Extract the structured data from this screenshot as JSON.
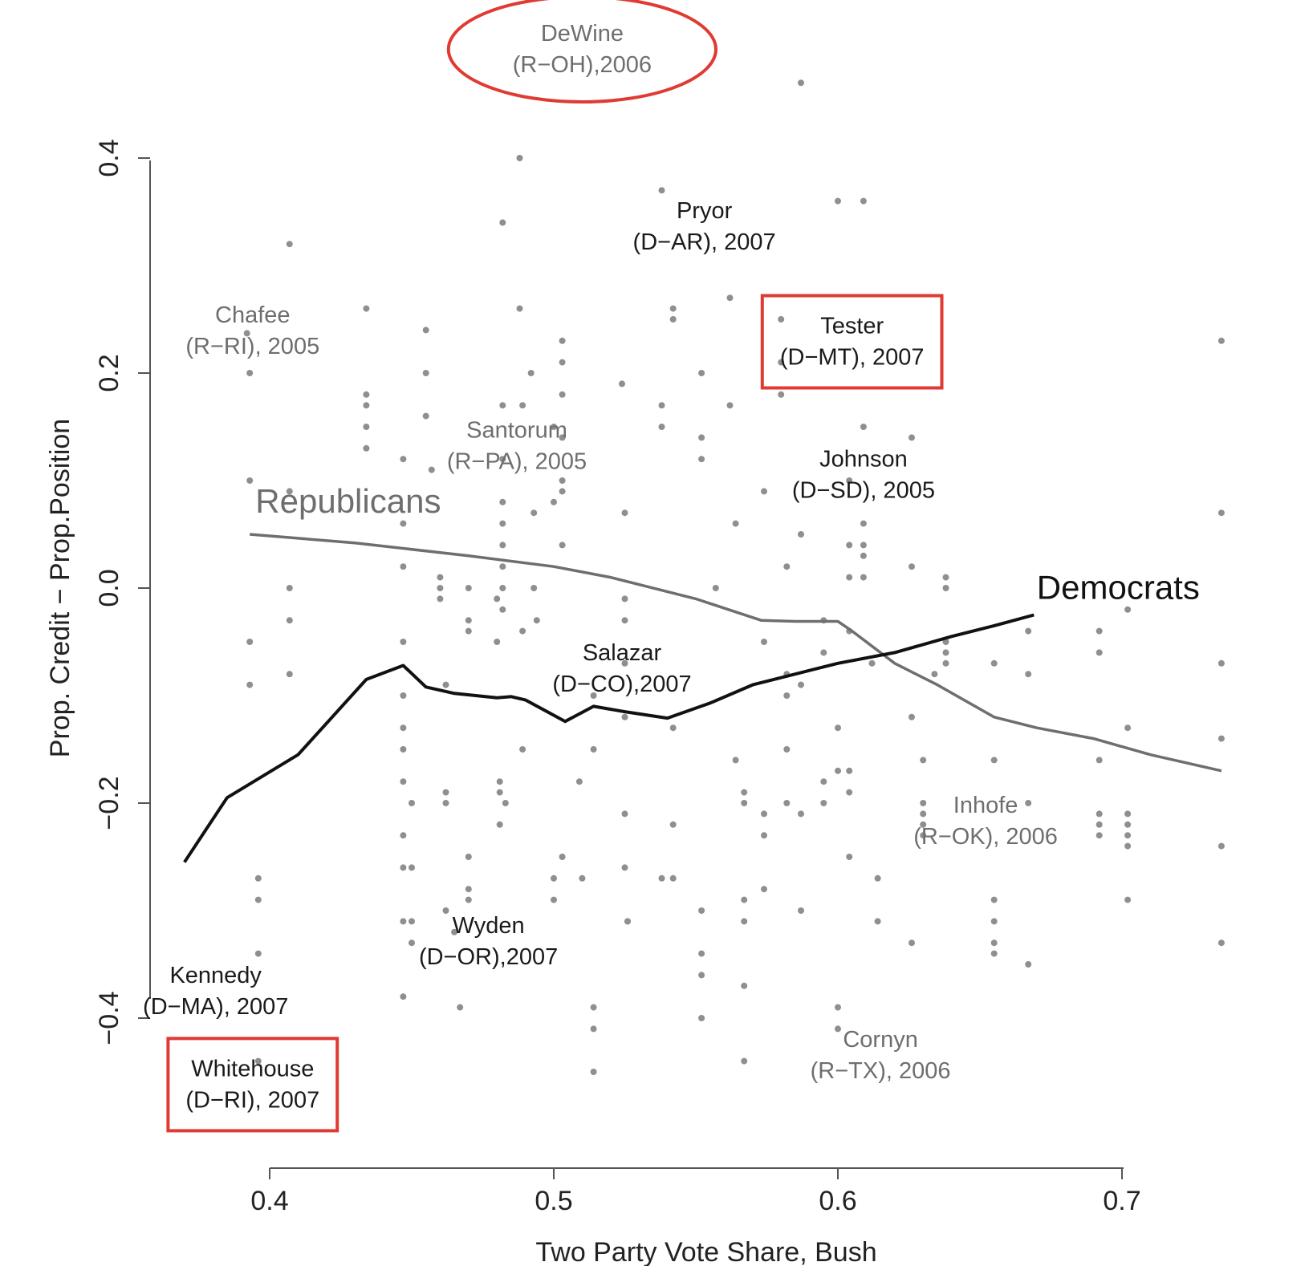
{
  "chart_data": {
    "type": "scatter",
    "xlabel": "Two Party Vote Share, Bush",
    "ylabel": "Prop. Credit − Prop.Position",
    "xlim": [
      0.355,
      0.745
    ],
    "ylim": [
      -0.51,
      0.53
    ],
    "x_ticks": [
      {
        "value": 0.4,
        "label": "0.4"
      },
      {
        "value": 0.5,
        "label": "0.5"
      },
      {
        "value": 0.6,
        "label": "0.6"
      },
      {
        "value": 0.7,
        "label": "0.7"
      }
    ],
    "y_ticks": [
      {
        "value": -0.4,
        "label": "−0.4"
      },
      {
        "value": -0.2,
        "label": "−0.2"
      },
      {
        "value": 0.0,
        "label": "0.0"
      },
      {
        "value": 0.2,
        "label": "0.2"
      },
      {
        "value": 0.4,
        "label": "0.4"
      }
    ],
    "grid": false,
    "colors": {
      "republicans": "#6e6e6e",
      "democrats": "#111111",
      "points": "#8f8f8f",
      "highlight": "#e03a32"
    },
    "points": [
      [
        0.392,
        0.237
      ],
      [
        0.393,
        0.2
      ],
      [
        0.393,
        0.1
      ],
      [
        0.393,
        -0.05
      ],
      [
        0.393,
        -0.09
      ],
      [
        0.396,
        -0.27
      ],
      [
        0.396,
        -0.29
      ],
      [
        0.396,
        -0.34
      ],
      [
        0.396,
        -0.44
      ],
      [
        0.407,
        0.32
      ],
      [
        0.407,
        0.09
      ],
      [
        0.407,
        0.0
      ],
      [
        0.407,
        -0.03
      ],
      [
        0.407,
        -0.08
      ],
      [
        0.434,
        0.26
      ],
      [
        0.434,
        0.18
      ],
      [
        0.434,
        0.17
      ],
      [
        0.434,
        0.15
      ],
      [
        0.434,
        0.13
      ],
      [
        0.447,
        0.12
      ],
      [
        0.447,
        0.06
      ],
      [
        0.447,
        0.02
      ],
      [
        0.447,
        -0.05
      ],
      [
        0.447,
        -0.1
      ],
      [
        0.447,
        -0.13
      ],
      [
        0.447,
        -0.15
      ],
      [
        0.447,
        -0.18
      ],
      [
        0.447,
        -0.23
      ],
      [
        0.447,
        -0.26
      ],
      [
        0.447,
        -0.31
      ],
      [
        0.447,
        -0.38
      ],
      [
        0.45,
        -0.2
      ],
      [
        0.45,
        -0.26
      ],
      [
        0.45,
        -0.31
      ],
      [
        0.45,
        -0.33
      ],
      [
        0.455,
        0.24
      ],
      [
        0.455,
        0.2
      ],
      [
        0.455,
        0.16
      ],
      [
        0.457,
        0.11
      ],
      [
        0.46,
        0.01
      ],
      [
        0.46,
        0.0
      ],
      [
        0.46,
        -0.01
      ],
      [
        0.462,
        -0.09
      ],
      [
        0.462,
        -0.19
      ],
      [
        0.462,
        -0.2
      ],
      [
        0.462,
        -0.3
      ],
      [
        0.465,
        -0.32
      ],
      [
        0.467,
        -0.39
      ],
      [
        0.47,
        0.0
      ],
      [
        0.47,
        -0.03
      ],
      [
        0.47,
        -0.04
      ],
      [
        0.47,
        -0.25
      ],
      [
        0.47,
        -0.28
      ],
      [
        0.47,
        -0.29
      ],
      [
        0.48,
        -0.01
      ],
      [
        0.48,
        -0.05
      ],
      [
        0.481,
        -0.18
      ],
      [
        0.481,
        -0.19
      ],
      [
        0.481,
        -0.22
      ],
      [
        0.482,
        0.34
      ],
      [
        0.482,
        0.17
      ],
      [
        0.482,
        0.12
      ],
      [
        0.482,
        0.08
      ],
      [
        0.482,
        0.06
      ],
      [
        0.482,
        0.04
      ],
      [
        0.482,
        0.02
      ],
      [
        0.482,
        0.0
      ],
      [
        0.482,
        -0.02
      ],
      [
        0.483,
        -0.2
      ],
      [
        0.488,
        0.4
      ],
      [
        0.488,
        0.26
      ],
      [
        0.489,
        0.17
      ],
      [
        0.489,
        -0.04
      ],
      [
        0.489,
        -0.15
      ],
      [
        0.492,
        0.2
      ],
      [
        0.493,
        0.07
      ],
      [
        0.493,
        0.0
      ],
      [
        0.494,
        -0.03
      ],
      [
        0.5,
        0.08
      ],
      [
        0.5,
        0.15
      ],
      [
        0.5,
        -0.27
      ],
      [
        0.5,
        -0.29
      ],
      [
        0.503,
        0.23
      ],
      [
        0.503,
        0.21
      ],
      [
        0.503,
        0.18
      ],
      [
        0.503,
        0.14
      ],
      [
        0.503,
        0.1
      ],
      [
        0.503,
        0.09
      ],
      [
        0.503,
        0.04
      ],
      [
        0.503,
        -0.25
      ],
      [
        0.509,
        -0.18
      ],
      [
        0.51,
        -0.27
      ],
      [
        0.514,
        -0.1
      ],
      [
        0.514,
        -0.15
      ],
      [
        0.514,
        -0.39
      ],
      [
        0.514,
        -0.41
      ],
      [
        0.514,
        -0.45
      ],
      [
        0.524,
        0.19
      ],
      [
        0.525,
        0.07
      ],
      [
        0.525,
        -0.01
      ],
      [
        0.525,
        -0.03
      ],
      [
        0.525,
        -0.07
      ],
      [
        0.525,
        -0.12
      ],
      [
        0.525,
        -0.21
      ],
      [
        0.525,
        -0.26
      ],
      [
        0.526,
        -0.31
      ],
      [
        0.526,
        -0.31
      ],
      [
        0.538,
        0.37
      ],
      [
        0.538,
        0.17
      ],
      [
        0.538,
        0.15
      ],
      [
        0.538,
        -0.27
      ],
      [
        0.542,
        0.26
      ],
      [
        0.542,
        0.25
      ],
      [
        0.542,
        -0.22
      ],
      [
        0.542,
        -0.27
      ],
      [
        0.542,
        -0.13
      ],
      [
        0.552,
        0.2
      ],
      [
        0.552,
        0.14
      ],
      [
        0.552,
        0.12
      ],
      [
        0.552,
        -0.3
      ],
      [
        0.552,
        -0.34
      ],
      [
        0.552,
        -0.36
      ],
      [
        0.552,
        -0.4
      ],
      [
        0.557,
        0.0
      ],
      [
        0.562,
        0.27
      ],
      [
        0.562,
        0.17
      ],
      [
        0.564,
        0.06
      ],
      [
        0.564,
        -0.16
      ],
      [
        0.567,
        -0.19
      ],
      [
        0.567,
        -0.2
      ],
      [
        0.567,
        -0.29
      ],
      [
        0.567,
        -0.31
      ],
      [
        0.567,
        -0.37
      ],
      [
        0.567,
        -0.44
      ],
      [
        0.574,
        0.09
      ],
      [
        0.574,
        -0.05
      ],
      [
        0.574,
        -0.21
      ],
      [
        0.574,
        -0.23
      ],
      [
        0.574,
        -0.28
      ],
      [
        0.58,
        0.25
      ],
      [
        0.58,
        0.21
      ],
      [
        0.58,
        0.18
      ],
      [
        0.582,
        0.02
      ],
      [
        0.582,
        -0.08
      ],
      [
        0.582,
        -0.1
      ],
      [
        0.582,
        -0.15
      ],
      [
        0.582,
        -0.2
      ],
      [
        0.587,
        0.47
      ],
      [
        0.587,
        0.05
      ],
      [
        0.587,
        -0.09
      ],
      [
        0.587,
        -0.21
      ],
      [
        0.587,
        -0.3
      ],
      [
        0.595,
        -0.03
      ],
      [
        0.595,
        -0.06
      ],
      [
        0.595,
        -0.18
      ],
      [
        0.595,
        -0.2
      ],
      [
        0.6,
        0.36
      ],
      [
        0.6,
        -0.13
      ],
      [
        0.6,
        -0.17
      ],
      [
        0.6,
        -0.39
      ],
      [
        0.6,
        -0.41
      ],
      [
        0.604,
        0.1
      ],
      [
        0.604,
        0.04
      ],
      [
        0.604,
        0.01
      ],
      [
        0.604,
        -0.04
      ],
      [
        0.604,
        -0.17
      ],
      [
        0.604,
        -0.19
      ],
      [
        0.604,
        -0.25
      ],
      [
        0.609,
        0.36
      ],
      [
        0.609,
        0.15
      ],
      [
        0.609,
        0.06
      ],
      [
        0.609,
        0.04
      ],
      [
        0.609,
        0.03
      ],
      [
        0.609,
        0.01
      ],
      [
        0.612,
        -0.07
      ],
      [
        0.614,
        -0.27
      ],
      [
        0.614,
        -0.31
      ],
      [
        0.626,
        0.14
      ],
      [
        0.626,
        0.02
      ],
      [
        0.626,
        -0.12
      ],
      [
        0.626,
        -0.33
      ],
      [
        0.63,
        -0.16
      ],
      [
        0.63,
        -0.2
      ],
      [
        0.63,
        -0.21
      ],
      [
        0.63,
        -0.22
      ],
      [
        0.63,
        -0.23
      ],
      [
        0.634,
        -0.08
      ],
      [
        0.638,
        0.01
      ],
      [
        0.638,
        0.0
      ],
      [
        0.638,
        -0.05
      ],
      [
        0.638,
        -0.06
      ],
      [
        0.638,
        -0.07
      ],
      [
        0.655,
        -0.07
      ],
      [
        0.655,
        -0.16
      ],
      [
        0.655,
        -0.29
      ],
      [
        0.655,
        -0.31
      ],
      [
        0.655,
        -0.33
      ],
      [
        0.655,
        -0.34
      ],
      [
        0.667,
        -0.04
      ],
      [
        0.667,
        -0.08
      ],
      [
        0.667,
        -0.2
      ],
      [
        0.667,
        -0.35
      ],
      [
        0.692,
        -0.04
      ],
      [
        0.692,
        -0.06
      ],
      [
        0.692,
        -0.16
      ],
      [
        0.692,
        -0.21
      ],
      [
        0.692,
        -0.22
      ],
      [
        0.692,
        -0.23
      ],
      [
        0.702,
        -0.02
      ],
      [
        0.702,
        -0.13
      ],
      [
        0.702,
        -0.21
      ],
      [
        0.702,
        -0.22
      ],
      [
        0.702,
        -0.23
      ],
      [
        0.702,
        -0.24
      ],
      [
        0.702,
        -0.29
      ],
      [
        0.735,
        0.23
      ],
      [
        0.735,
        0.07
      ],
      [
        0.735,
        -0.07
      ],
      [
        0.735,
        -0.14
      ],
      [
        0.735,
        -0.24
      ],
      [
        0.735,
        -0.33
      ]
    ],
    "series": [
      {
        "name": "Republicans",
        "x": [
          0.393,
          0.43,
          0.47,
          0.5,
          0.52,
          0.55,
          0.573,
          0.585,
          0.6,
          0.605,
          0.62,
          0.635,
          0.655,
          0.67,
          0.69,
          0.71,
          0.735
        ],
        "y": [
          0.05,
          0.042,
          0.03,
          0.02,
          0.01,
          -0.01,
          -0.03,
          -0.031,
          -0.031,
          -0.04,
          -0.07,
          -0.09,
          -0.12,
          -0.13,
          -0.14,
          -0.155,
          -0.17
        ]
      },
      {
        "name": "Democrats",
        "x": [
          0.37,
          0.385,
          0.41,
          0.434,
          0.447,
          0.455,
          0.465,
          0.48,
          0.485,
          0.49,
          0.504,
          0.514,
          0.525,
          0.54,
          0.555,
          0.57,
          0.585,
          0.6,
          0.62,
          0.64,
          0.655,
          0.669
        ],
        "y": [
          -0.255,
          -0.195,
          -0.155,
          -0.085,
          -0.072,
          -0.092,
          -0.098,
          -0.102,
          -0.101,
          -0.104,
          -0.124,
          -0.11,
          -0.115,
          -0.121,
          -0.107,
          -0.09,
          -0.08,
          -0.07,
          -0.06,
          -0.045,
          -0.035,
          -0.025
        ]
      }
    ],
    "series_labels": [
      {
        "name": "Republicans",
        "x": 0.395,
        "y": 0.07
      },
      {
        "name": "Democrats",
        "x": 0.67,
        "y": -0.01
      }
    ],
    "annotations": [
      {
        "id": "dewine",
        "lines": [
          "DeWine",
          "(R−OH),2006"
        ],
        "party": "R",
        "x": 0.51,
        "y": 0.5
      },
      {
        "id": "pryor",
        "lines": [
          "Pryor",
          "(D−AR), 2007"
        ],
        "party": "D",
        "x": 0.553,
        "y": 0.335
      },
      {
        "id": "chafee",
        "lines": [
          "Chafee",
          "(R−RI), 2005"
        ],
        "party": "R",
        "x": 0.394,
        "y": 0.238
      },
      {
        "id": "tester",
        "lines": [
          "Tester",
          "(D−MT), 2007"
        ],
        "party": "D",
        "x": 0.605,
        "y": 0.228
      },
      {
        "id": "santorum",
        "lines": [
          "Santorum",
          "(R−PA), 2005"
        ],
        "party": "R",
        "x": 0.487,
        "y": 0.131
      },
      {
        "id": "johnson",
        "lines": [
          "Johnson",
          "(D−SD), 2005"
        ],
        "party": "D",
        "x": 0.609,
        "y": 0.104
      },
      {
        "id": "salazar",
        "lines": [
          "Salazar",
          "(D−CO),2007"
        ],
        "party": "D",
        "x": 0.524,
        "y": -0.076
      },
      {
        "id": "inhofe",
        "lines": [
          "Inhofe",
          "(R−OK), 2006"
        ],
        "party": "R",
        "x": 0.652,
        "y": -0.218
      },
      {
        "id": "wyden",
        "lines": [
          "Wyden",
          "(D−OR),2007"
        ],
        "party": "D",
        "x": 0.477,
        "y": -0.33
      },
      {
        "id": "kennedy",
        "lines": [
          "Kennedy",
          "(D−MA), 2007"
        ],
        "party": "D",
        "x": 0.381,
        "y": -0.376
      },
      {
        "id": "cornyn",
        "lines": [
          "Cornyn",
          "(R−TX), 2006"
        ],
        "party": "R",
        "x": 0.615,
        "y": -0.436
      },
      {
        "id": "whitehouse",
        "lines": [
          "Whitehouse",
          "(D−RI), 2007"
        ],
        "party": "D",
        "x": 0.394,
        "y": -0.463
      }
    ],
    "highlights": [
      {
        "id": "dewine",
        "shape": "ellipse"
      },
      {
        "id": "tester",
        "shape": "rect"
      },
      {
        "id": "whitehouse",
        "shape": "rect"
      }
    ]
  }
}
